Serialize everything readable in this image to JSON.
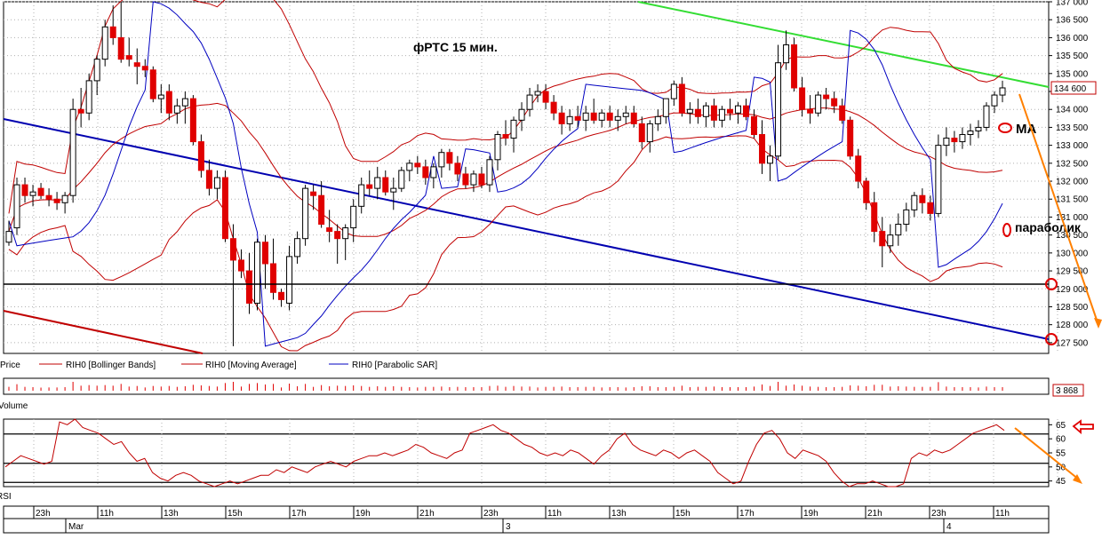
{
  "chart_data": [
    {
      "type": "candlestick",
      "panel": "price",
      "title": "фРТС   15 мин.",
      "instrument": "RIH0",
      "ylim": [
        127200,
        137000
      ],
      "y_ticks": [
        127500,
        128000,
        128500,
        129000,
        129500,
        130000,
        130500,
        131000,
        131500,
        132000,
        132500,
        133000,
        133500,
        134000,
        134500,
        135000,
        135500,
        136000,
        136500,
        137000
      ],
      "y_tick_labels": [
        "127 500",
        "128 000",
        "128 500",
        "129 000",
        "129 500",
        "130 000",
        "130 500",
        "131 000",
        "131 500",
        "132 000",
        "132 500",
        "133 000",
        "133 500",
        "134 000",
        "134 500",
        "135 000",
        "135 500",
        "136 000",
        "136 500",
        "137 000"
      ],
      "last_price_label": "134 600",
      "last_price": 134600,
      "legend": [
        "Price",
        "RIH0 [Bollinger Bands]",
        "RIH0 [Moving Average]",
        "RIH0 [Parabolic SAR]"
      ],
      "annotations": [
        "MA",
        "параболик"
      ],
      "circled_levels": [
        "129 000",
        "127 500"
      ],
      "horizontal_levels": [
        129000
      ],
      "colors": {
        "up_candle": "#ffffff",
        "down_candle": "#e00000",
        "bollinger": "#c00000",
        "ma": "#c00000",
        "sar": "#0000c0",
        "trend_blue": "#0000b0",
        "trend_green": "#33dd33",
        "trend_red": "#c00000",
        "arrow": "#ff8000",
        "grid": "#b0b0b0"
      },
      "candles_ohlc": [
        [
          130300,
          130900,
          130200,
          130600
        ],
        [
          130700,
          132100,
          130500,
          131900
        ],
        [
          131900,
          132100,
          131400,
          131600
        ],
        [
          131600,
          131900,
          131300,
          131700
        ],
        [
          131800,
          131950,
          131500,
          131600
        ],
        [
          131600,
          131800,
          131300,
          131500
        ],
        [
          131500,
          131700,
          131200,
          131400
        ],
        [
          131400,
          131700,
          131100,
          131600
        ],
        [
          131600,
          134300,
          131400,
          134000
        ],
        [
          134000,
          134600,
          133500,
          133900
        ],
        [
          133900,
          135000,
          133700,
          134800
        ],
        [
          134800,
          135500,
          134400,
          135400
        ],
        [
          135400,
          136500,
          135200,
          136300
        ],
        [
          136300,
          136900,
          135800,
          136000
        ],
        [
          136000,
          137000,
          135300,
          135400
        ],
        [
          135500,
          136000,
          135200,
          135400
        ],
        [
          135300,
          135700,
          134700,
          135200
        ],
        [
          135200,
          135400,
          134900,
          135100
        ],
        [
          135100,
          135200,
          134200,
          134300
        ],
        [
          134300,
          134700,
          133900,
          134400
        ],
        [
          134500,
          134700,
          133700,
          133900
        ],
        [
          133900,
          134300,
          133600,
          134100
        ],
        [
          134100,
          134500,
          133600,
          134300
        ],
        [
          134300,
          134400,
          133000,
          133100
        ],
        [
          133100,
          133300,
          132100,
          132300
        ],
        [
          132300,
          132600,
          131600,
          131800
        ],
        [
          131800,
          132300,
          131500,
          132100
        ],
        [
          132100,
          132300,
          130300,
          130400
        ],
        [
          130400,
          130800,
          127400,
          129800
        ],
        [
          129800,
          130100,
          129300,
          129500
        ],
        [
          129500,
          130000,
          128300,
          128600
        ],
        [
          128600,
          130400,
          128400,
          130300
        ],
        [
          130300,
          130500,
          129000,
          129700
        ],
        [
          129700,
          130400,
          128700,
          128900
        ],
        [
          128900,
          129000,
          128500,
          128700
        ],
        [
          128600,
          130200,
          128400,
          129900
        ],
        [
          129900,
          130600,
          129700,
          130400
        ],
        [
          130400,
          131900,
          130200,
          131800
        ],
        [
          131700,
          131900,
          131200,
          131600
        ],
        [
          131600,
          132000,
          130700,
          130800
        ],
        [
          130700,
          131200,
          130300,
          130600
        ],
        [
          130600,
          130800,
          129700,
          130400
        ],
        [
          130400,
          130800,
          129800,
          130700
        ],
        [
          130700,
          131500,
          130300,
          131300
        ],
        [
          131300,
          132100,
          131100,
          131900
        ],
        [
          131900,
          132300,
          131600,
          131800
        ],
        [
          131800,
          132400,
          131500,
          132100
        ],
        [
          132100,
          132300,
          131600,
          131700
        ],
        [
          131700,
          132100,
          131200,
          131800
        ],
        [
          131800,
          132400,
          131700,
          132300
        ],
        [
          132300,
          132600,
          132000,
          132500
        ],
        [
          132500,
          132700,
          132200,
          132400
        ],
        [
          132400,
          132600,
          131900,
          132100
        ],
        [
          132100,
          132500,
          131800,
          132400
        ],
        [
          132400,
          132900,
          132100,
          132800
        ],
        [
          132800,
          132900,
          132300,
          132500
        ],
        [
          132500,
          132700,
          132000,
          132200
        ],
        [
          132200,
          132400,
          131800,
          131900
        ],
        [
          131900,
          132300,
          131700,
          132200
        ],
        [
          132200,
          132400,
          131800,
          131900
        ],
        [
          131900,
          132700,
          131700,
          132600
        ],
        [
          132600,
          133400,
          132300,
          133300
        ],
        [
          133300,
          133700,
          133000,
          133200
        ],
        [
          133200,
          133800,
          132800,
          133700
        ],
        [
          133700,
          134200,
          133400,
          134000
        ],
        [
          134000,
          134600,
          133800,
          134400
        ],
        [
          134400,
          134700,
          134200,
          134500
        ],
        [
          134500,
          134700,
          134000,
          134200
        ],
        [
          134200,
          134400,
          133700,
          133900
        ],
        [
          133900,
          134100,
          133300,
          133600
        ],
        [
          133600,
          134000,
          133400,
          133800
        ],
        [
          133800,
          134100,
          133500,
          133700
        ],
        [
          133700,
          134100,
          133400,
          133900
        ],
        [
          133900,
          134300,
          133600,
          133700
        ],
        [
          133700,
          134000,
          133500,
          133900
        ],
        [
          133900,
          134100,
          133500,
          133700
        ],
        [
          133700,
          134000,
          133400,
          133800
        ],
        [
          133800,
          134100,
          133600,
          133900
        ],
        [
          133900,
          134100,
          133500,
          133600
        ],
        [
          133600,
          133800,
          132900,
          133100
        ],
        [
          133100,
          133700,
          132800,
          133600
        ],
        [
          133600,
          134000,
          133400,
          133800
        ],
        [
          133800,
          134200,
          133600,
          134300
        ],
        [
          134300,
          134800,
          134100,
          134700
        ],
        [
          134700,
          134900,
          133800,
          133900
        ],
        [
          133900,
          134200,
          133600,
          134000
        ],
        [
          134000,
          134300,
          133600,
          133800
        ],
        [
          133800,
          134200,
          133500,
          134100
        ],
        [
          134100,
          134300,
          133500,
          133700
        ],
        [
          133700,
          134100,
          133500,
          134000
        ],
        [
          134000,
          134300,
          133700,
          133900
        ],
        [
          133900,
          134200,
          133600,
          134100
        ],
        [
          134100,
          134300,
          133700,
          133800
        ],
        [
          133800,
          134000,
          133200,
          133300
        ],
        [
          133300,
          133700,
          132200,
          132500
        ],
        [
          132500,
          133000,
          132000,
          132700
        ],
        [
          132700,
          135800,
          132600,
          135300
        ],
        [
          135300,
          136200,
          135100,
          135800
        ],
        [
          135800,
          136000,
          134500,
          134600
        ],
        [
          134600,
          134900,
          133800,
          134000
        ],
        [
          134000,
          134400,
          133600,
          133900
        ],
        [
          133900,
          134500,
          133800,
          134400
        ],
        [
          134400,
          134600,
          134000,
          134300
        ],
        [
          134300,
          134500,
          133900,
          134100
        ],
        [
          134100,
          134300,
          133600,
          133700
        ],
        [
          133700,
          133800,
          132600,
          132700
        ],
        [
          132700,
          132900,
          131800,
          132000
        ],
        [
          132000,
          132100,
          131200,
          131400
        ],
        [
          131400,
          131700,
          130300,
          130600
        ],
        [
          130600,
          131000,
          129600,
          130200
        ],
        [
          130200,
          130800,
          130000,
          130500
        ],
        [
          130500,
          131100,
          130200,
          130800
        ],
        [
          130800,
          131400,
          130600,
          131200
        ],
        [
          131200,
          131700,
          131000,
          131600
        ],
        [
          131600,
          131800,
          131100,
          131400
        ],
        [
          131400,
          131600,
          130900,
          131100
        ],
        [
          131100,
          133300,
          131000,
          133000
        ],
        [
          133000,
          133500,
          132700,
          133200
        ],
        [
          133200,
          133400,
          132800,
          133100
        ],
        [
          133100,
          133500,
          132900,
          133300
        ],
        [
          133300,
          133600,
          133000,
          133400
        ],
        [
          133400,
          133700,
          133200,
          133500
        ],
        [
          133500,
          134200,
          133400,
          134100
        ],
        [
          134100,
          134500,
          133900,
          134400
        ],
        [
          134400,
          134800,
          134200,
          134600
        ]
      ]
    },
    {
      "type": "bar",
      "panel": "volume",
      "label": "Volume",
      "last_value_label": "3 868",
      "last_value": 3868
    },
    {
      "type": "line",
      "panel": "rsi",
      "label": "RSI",
      "ylim": [
        43,
        67
      ],
      "y_ticks": [
        45,
        50,
        55,
        60,
        65
      ],
      "y_tick_labels": [
        "45",
        "50",
        "55",
        "60",
        "65"
      ],
      "horizontal_levels": [
        44.5,
        51.3,
        61.7
      ],
      "values": [
        50,
        52,
        54,
        53,
        52,
        51,
        52,
        66,
        65,
        67,
        64,
        63,
        62,
        60,
        58,
        59,
        55,
        52,
        53,
        48,
        46,
        45,
        47,
        48,
        47,
        45,
        44,
        43,
        44,
        45,
        44,
        45,
        46,
        47,
        47,
        49,
        48,
        50,
        49,
        48,
        50,
        51,
        52,
        51,
        50,
        52,
        53,
        54,
        54,
        55,
        54,
        55,
        56,
        58,
        57,
        55,
        54,
        53,
        55,
        56,
        62,
        63,
        64,
        65,
        63,
        62,
        60,
        58,
        57,
        55,
        54,
        55,
        54,
        56,
        55,
        53,
        51,
        54,
        56,
        60,
        62,
        58,
        56,
        55,
        54,
        56,
        55,
        53,
        55,
        56,
        54,
        52,
        48,
        46,
        44,
        45,
        52,
        58,
        62,
        63,
        60,
        55,
        53,
        56,
        55,
        54,
        52,
        48,
        45,
        43,
        44,
        44,
        45,
        44,
        43,
        43,
        44,
        53,
        55,
        54,
        56,
        55,
        56,
        58,
        60,
        62,
        63,
        64,
        65,
        63
      ]
    },
    {
      "type": "axis",
      "panel": "time",
      "time_labels": [
        "23h",
        "11h",
        "13h",
        "15h",
        "17h",
        "19h",
        "21h",
        "23h",
        "11h",
        "13h",
        "15h",
        "17h",
        "19h",
        "21h",
        "23h",
        "11h"
      ],
      "date_labels": [
        "Mar",
        "3",
        "4"
      ]
    }
  ]
}
